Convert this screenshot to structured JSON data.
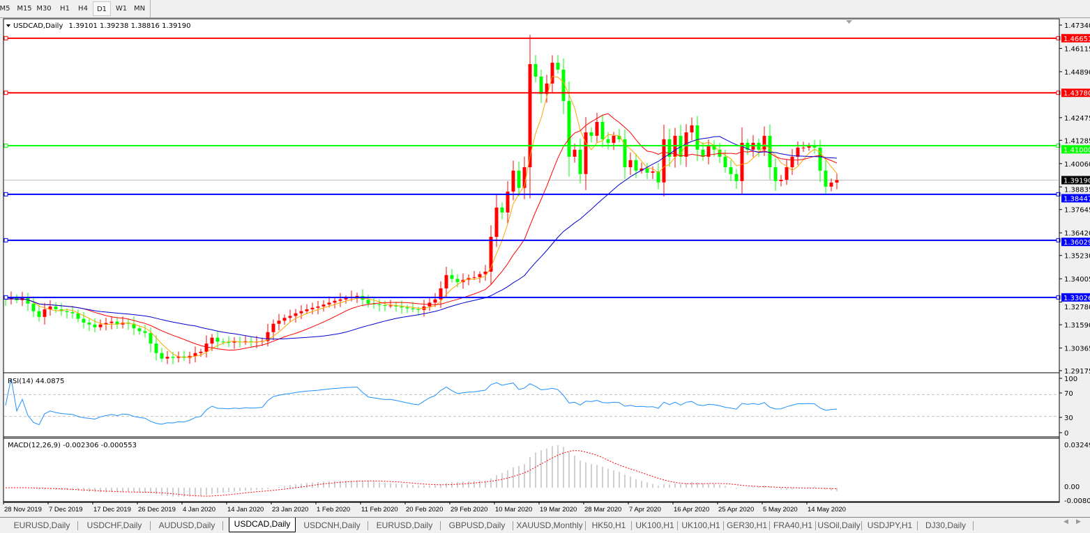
{
  "toolbar": {
    "timeframes": [
      "M5",
      "M15",
      "M30",
      "H1",
      "H4",
      "D1",
      "W1",
      "MN"
    ],
    "selected": "D1"
  },
  "chart_header": {
    "symbol": "USDCAD,Daily",
    "ohlc": "1.39101 1.39238 1.38816 1.39190"
  },
  "rsi": {
    "label": "RSI(14) 44.0875",
    "axis": [
      "100",
      "70",
      "30",
      "0"
    ]
  },
  "macd": {
    "label": "MACD(12,26,9) -0.002306 -0.000553",
    "axis": [
      "0.032493",
      "0.00",
      "-0.00808"
    ]
  },
  "tabs": [
    "EURUSD,Daily",
    "USDCHF,Daily",
    "AUDUSD,Daily",
    "USDCAD,Daily",
    "USDCNH,Daily",
    "EURUSD,Daily",
    "GBPUSD,Daily",
    "XAUUSD,Monthly",
    "HK50,H1",
    "UK100,H1",
    "UK100,H1",
    "GER30,H1",
    "FRA40,H1",
    "USOil,Daily",
    "USDJPY,H1",
    "DJ30,Daily"
  ],
  "active_tab": "USDCAD,Daily",
  "colors": {
    "bull": "#ff0000",
    "bear": "#00ff00",
    "ma_fast": "#ffa500",
    "ma_mid": "#ff0000",
    "ma_slow": "#0000cd",
    "rsi": "#1e90ff",
    "macd_signal": "#ff0000",
    "macd_hist": "#a0a0a0"
  },
  "chart_data": {
    "type": "candlestick",
    "symbol": "USDCAD",
    "timeframe": "Daily",
    "ylim": [
      1.29175,
      1.4734
    ],
    "price_ticks": [
      "1.47340",
      "1.46115",
      "1.44890",
      "1.42475",
      "1.41285",
      "1.40060",
      "1.38835",
      "1.37645",
      "1.36420",
      "1.35230",
      "1.34005",
      "1.32780",
      "1.31590",
      "1.30365",
      "1.29175"
    ],
    "x_labels": [
      "28 Nov 2019",
      "7 Dec 2019",
      "17 Dec 2019",
      "26 Dec 2019",
      "4 Jan 2020",
      "14 Jan 2020",
      "23 Jan 2020",
      "1 Feb 2020",
      "11 Feb 2020",
      "20 Feb 2020",
      "29 Feb 2020",
      "10 Mar 2020",
      "19 Mar 2020",
      "28 Mar 2020",
      "7 Apr 2020",
      "16 Apr 2020",
      "25 Apr 2020",
      "5 May 2020",
      "14 May 2020"
    ],
    "current_price": "1.39190",
    "levels": [
      {
        "price": "1.46651",
        "color": "#ff0000"
      },
      {
        "price": "1.43780",
        "color": "#ff0000"
      },
      {
        "price": "1.41000",
        "color": "#00ff00"
      },
      {
        "price": "1.38447",
        "color": "#0000ff"
      },
      {
        "price": "1.36029",
        "color": "#0000ff"
      },
      {
        "price": "1.33026",
        "color": "#0000ff"
      }
    ],
    "closes": [
      1.3292,
      1.33,
      1.3288,
      1.3299,
      1.327,
      1.323,
      1.32,
      1.324,
      1.3255,
      1.324,
      1.323,
      1.3225,
      1.3219,
      1.319,
      1.317,
      1.316,
      1.3146,
      1.316,
      1.3168,
      1.3175,
      1.316,
      1.317,
      1.3164,
      1.314,
      1.3125,
      1.3116,
      1.306,
      1.301,
      1.2981,
      1.299,
      1.2985,
      1.2992,
      1.2985,
      1.2995,
      1.301,
      1.3017,
      1.306,
      1.3091,
      1.307,
      1.3068,
      1.3065,
      1.307,
      1.3066,
      1.3072,
      1.3068,
      1.307,
      1.3073,
      1.312,
      1.3164,
      1.318,
      1.3195,
      1.3205,
      1.3219,
      1.323,
      1.324,
      1.3248,
      1.3255,
      1.3265,
      1.3275,
      1.3285,
      1.3292,
      1.33,
      1.3305,
      1.331,
      1.329,
      1.327,
      1.3266,
      1.3262,
      1.3258,
      1.326,
      1.3255,
      1.325,
      1.3245,
      1.324,
      1.3237,
      1.3255,
      1.3275,
      1.3292,
      1.335,
      1.342,
      1.34,
      1.3383,
      1.3395,
      1.3405,
      1.3409,
      1.3425,
      1.3438,
      1.3621,
      1.3775,
      1.3749,
      1.3859,
      1.3969,
      1.3878,
      1.3987,
      1.4529,
      1.4463,
      1.4372,
      1.4427,
      1.4536,
      1.45,
      1.4335,
      1.4042,
      1.4079,
      1.3951,
      1.417,
      1.4152,
      1.4225,
      1.4134,
      1.4115,
      1.4152,
      1.4134,
      1.3987,
      1.4024,
      1.3969,
      1.398,
      1.3958,
      1.3965,
      1.3907,
      1.4134,
      1.4042,
      1.4152,
      1.4042,
      1.417,
      1.4207,
      1.4079,
      1.4042,
      1.4097,
      1.4079,
      1.4042,
      1.3987,
      1.3951,
      1.3914,
      1.4115,
      1.4079,
      1.4115,
      1.4079,
      1.4152,
      1.3987,
      1.3914,
      1.3921,
      1.3987,
      1.4042,
      1.409,
      1.409,
      1.4097,
      1.409,
      1.3969,
      1.3885,
      1.3906,
      1.3919
    ]
  }
}
